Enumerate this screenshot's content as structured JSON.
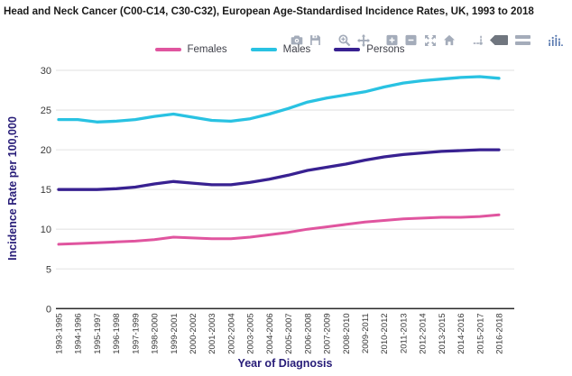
{
  "title": "Head and Neck Cancer (C00-C14, C30-C32), European Age-Standardised Incidence Rates, UK, 1993 to 2018",
  "toolbar": {
    "icon_names": [
      "camera-icon",
      "save-icon",
      "zoom-icon",
      "pan-icon",
      "zoom-in-icon",
      "zoom-out-icon",
      "autoscale-icon",
      "reset-axes-icon",
      "spike-lines-icon",
      "hover-closest-icon",
      "hover-compare-icon",
      "plotly-logo-icon"
    ]
  },
  "chart_data": {
    "type": "line",
    "title": "Head and Neck Cancer (C00-C14, C30-C32), European Age-Standardised Incidence Rates, UK, 1993 to 2018",
    "xlabel": "Year of Diagnosis",
    "ylabel": "Incidence Rate per 100,000",
    "ylim": [
      0,
      30
    ],
    "yticks": [
      0,
      5,
      10,
      15,
      20,
      25,
      30
    ],
    "grid": "horizontal",
    "legend_position": "top-center",
    "categories": [
      "1993-1995",
      "1994-1996",
      "1995-1997",
      "1996-1998",
      "1997-1999",
      "1998-2000",
      "1999-2001",
      "2000-2002",
      "2001-2003",
      "2002-2004",
      "2003-2005",
      "2004-2006",
      "2005-2007",
      "2006-2008",
      "2007-2009",
      "2008-2010",
      "2009-2011",
      "2010-2012",
      "2011-2013",
      "2012-2014",
      "2013-2015",
      "2014-2016",
      "2015-2017",
      "2016-2018"
    ],
    "series": [
      {
        "name": "Females",
        "color": "#e0559f",
        "values": [
          8.1,
          8.2,
          8.3,
          8.4,
          8.5,
          8.7,
          9.0,
          8.9,
          8.8,
          8.8,
          9.0,
          9.3,
          9.6,
          10.0,
          10.3,
          10.6,
          10.9,
          11.1,
          11.3,
          11.4,
          11.5,
          11.5,
          11.6,
          11.8
        ]
      },
      {
        "name": "Males",
        "color": "#29c2e2",
        "values": [
          23.8,
          23.8,
          23.5,
          23.6,
          23.8,
          24.2,
          24.5,
          24.1,
          23.7,
          23.6,
          23.9,
          24.5,
          25.2,
          26.0,
          26.5,
          26.9,
          27.3,
          27.9,
          28.4,
          28.7,
          28.9,
          29.1,
          29.2,
          29.0
        ]
      },
      {
        "name": "Persons",
        "color": "#382191",
        "values": [
          15.0,
          15.0,
          15.0,
          15.1,
          15.3,
          15.7,
          16.0,
          15.8,
          15.6,
          15.6,
          15.9,
          16.3,
          16.8,
          17.4,
          17.8,
          18.2,
          18.7,
          19.1,
          19.4,
          19.6,
          19.8,
          19.9,
          20.0,
          20.0
        ]
      }
    ]
  },
  "colors": {
    "axis_title_navy": "#271c78",
    "tick_label": "#3a3a3a",
    "legend_label": "#3f4049",
    "gridline": "#e8e8e8",
    "axis_line": "#2a2a2a",
    "toolbar_icon": "#a4acba",
    "toolbar_icon_active": "#70767f",
    "plotly_logo": "#5a7ab0"
  }
}
